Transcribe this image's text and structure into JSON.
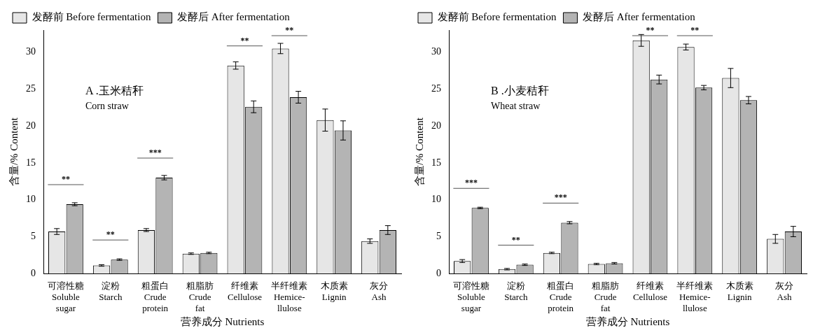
{
  "chart_data": [
    {
      "type": "bar",
      "title": "A .玉米秸秆\nCorn straw",
      "xlabel": "营养成分 Nutrients",
      "ylabel": "含量/% Content",
      "categories": [
        "可溶性糖\nSoluble\nsugar",
        "淀粉\nStarch",
        "粗蛋白\nCrude\nprotein",
        "粗脂肪\nCrude\nfat",
        "纤维素\nCellulose",
        "半纤维素\nHemice-\nllulose",
        "木质素\nLignin",
        "灰分\nAsh"
      ],
      "series": [
        {
          "name": "发酵前 Before fermentation",
          "color": "#e6e6e6",
          "values": [
            5.7,
            1.1,
            5.9,
            2.7,
            28.2,
            30.5,
            20.8,
            4.4
          ],
          "errors": [
            0.4,
            0.1,
            0.2,
            0.1,
            0.5,
            0.7,
            1.5,
            0.3
          ]
        },
        {
          "name": "发酵后 After fermentation",
          "color": "#b4b4b4",
          "values": [
            9.4,
            1.9,
            13.0,
            2.8,
            22.6,
            23.9,
            19.4,
            5.9
          ],
          "errors": [
            0.2,
            0.1,
            0.3,
            0.1,
            0.8,
            0.8,
            1.3,
            0.6
          ]
        }
      ],
      "ylim": [
        0,
        33
      ],
      "yticks": [
        0,
        5,
        10,
        15,
        20,
        25,
        30
      ],
      "grid": false,
      "legend": "top left",
      "annotations": [
        {
          "text": "**",
          "x": "可溶性糖\nSoluble\nsugar",
          "y": 9.4
        },
        {
          "text": "**",
          "x": "淀粉\nStarch",
          "y": 1.9
        },
        {
          "text": "***",
          "x": "粗蛋白\nCrude\nprotein",
          "y": 13.0
        },
        {
          "text": "**",
          "x": "纤维素\nCellulose",
          "y": 28.2
        },
        {
          "text": "**",
          "x": "半纤维素\nHemice-\nllulose",
          "y": 30.5
        }
      ]
    },
    {
      "type": "bar",
      "title": "B .小麦秸秆\nWheat straw",
      "xlabel": "营养成分 Nutrients",
      "ylabel": "含量/% Content",
      "categories": [
        "可溶性糖\nSoluble\nsugar",
        "淀粉\nStarch",
        "粗蛋白\nCrude\nprotein",
        "粗脂肪\nCrude\nfat",
        "纤维素\nCellulose",
        "半纤维素\nHemice-\nllulose",
        "木质素\nLignin",
        "灰分\nAsh"
      ],
      "series": [
        {
          "name": "发酵前 Before fermentation",
          "color": "#e6e6e6",
          "values": [
            1.7,
            0.6,
            2.8,
            1.3,
            31.6,
            30.7,
            26.5,
            4.7
          ],
          "errors": [
            0.2,
            0.1,
            0.1,
            0.1,
            0.8,
            0.4,
            1.3,
            0.6
          ]
        },
        {
          "name": "发酵后 After fermentation",
          "color": "#b4b4b4",
          "values": [
            8.9,
            1.2,
            6.9,
            1.4,
            26.3,
            25.2,
            23.5,
            5.7
          ],
          "errors": [
            0.1,
            0.1,
            0.15,
            0.1,
            0.6,
            0.3,
            0.5,
            0.7
          ]
        }
      ],
      "ylim": [
        0,
        33
      ],
      "yticks": [
        0,
        5,
        10,
        15,
        20,
        25,
        30
      ],
      "grid": false,
      "legend": "top left",
      "annotations": [
        {
          "text": "***",
          "x": "可溶性糖\nSoluble\nsugar",
          "y": 8.9
        },
        {
          "text": "**",
          "x": "淀粉\nStarch",
          "y": 1.2
        },
        {
          "text": "***",
          "x": "粗蛋白\nCrude\nprotein",
          "y": 6.9
        },
        {
          "text": "**",
          "x": "纤维素\nCellulose",
          "y": 31.6
        },
        {
          "text": "**",
          "x": "半纤维素\nHemice-\nllulose",
          "y": 30.7
        }
      ]
    }
  ]
}
